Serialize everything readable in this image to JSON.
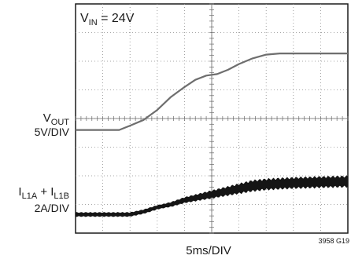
{
  "chart_data": {
    "type": "line",
    "annotation": {
      "main": "V",
      "sub": "IN",
      "rest": " = 24V"
    },
    "xlabel": "5ms/DIV",
    "figure_id": "3958 G19",
    "x_divisions": 10,
    "y_divisions": 8,
    "channels": [
      {
        "name_main": "V",
        "name_sub": "OUT",
        "name_rest": "",
        "scale": "5V/DIV",
        "points": [
          [
            0,
            3.6
          ],
          [
            1,
            3.6
          ],
          [
            1.6,
            3.6
          ],
          [
            2,
            3.75
          ],
          [
            2.5,
            3.95
          ],
          [
            3,
            4.3
          ],
          [
            3.5,
            4.75
          ],
          [
            4,
            5.1
          ],
          [
            4.4,
            5.35
          ],
          [
            4.8,
            5.5
          ],
          [
            5.2,
            5.55
          ],
          [
            5.6,
            5.7
          ],
          [
            6,
            5.9
          ],
          [
            6.5,
            6.1
          ],
          [
            7,
            6.23
          ],
          [
            7.5,
            6.27
          ],
          [
            8,
            6.27
          ],
          [
            10,
            6.27
          ]
        ]
      },
      {
        "name_main": "I",
        "name_sub": "L1A",
        "name_rest": " + I",
        "name_sub2": "L1B",
        "scale": "2A/DIV",
        "points": [
          [
            0,
            0.65
          ],
          [
            1,
            0.65
          ],
          [
            2,
            0.65
          ],
          [
            2.5,
            0.75
          ],
          [
            3,
            0.9
          ],
          [
            3.5,
            1.0
          ],
          [
            4,
            1.15
          ],
          [
            4.5,
            1.25
          ],
          [
            5,
            1.35
          ],
          [
            5.5,
            1.45
          ],
          [
            6,
            1.55
          ],
          [
            6.5,
            1.65
          ],
          [
            7,
            1.7
          ],
          [
            8,
            1.75
          ],
          [
            9,
            1.78
          ],
          [
            10,
            1.8
          ]
        ],
        "ripple_div": 0.4
      }
    ]
  }
}
